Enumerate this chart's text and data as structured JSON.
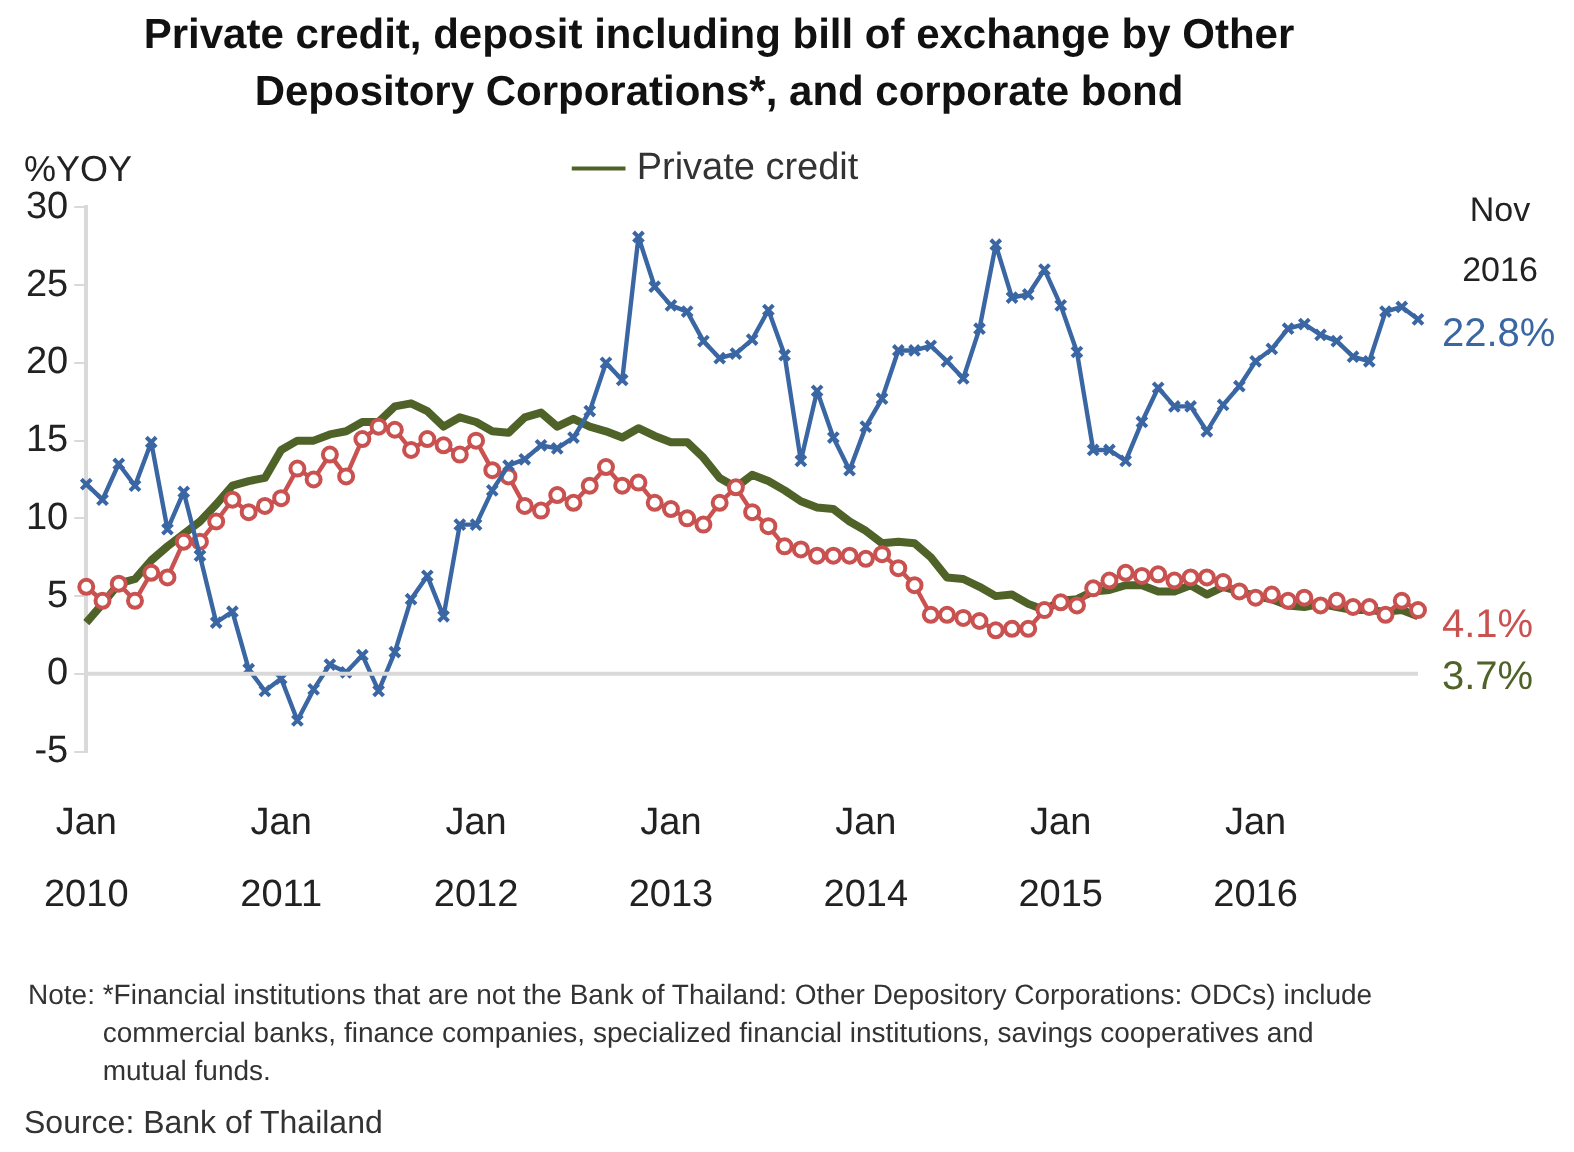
{
  "chart_data": {
    "type": "line",
    "title": "Private credit, deposit including bill of exchange by Other Depository Corporations*, and corporate bond",
    "ylabel": "%YOY",
    "categories": [
      "Jan 2010",
      null,
      null,
      null,
      null,
      null,
      null,
      null,
      null,
      null,
      null,
      null,
      "Jan 2011",
      null,
      null,
      null,
      null,
      null,
      null,
      null,
      null,
      null,
      null,
      null,
      "Jan 2012",
      null,
      null,
      null,
      null,
      null,
      null,
      null,
      null,
      null,
      null,
      null,
      "Jan 2013",
      null,
      null,
      null,
      null,
      null,
      null,
      null,
      null,
      null,
      null,
      null,
      "Jan 2014",
      null,
      null,
      null,
      null,
      null,
      null,
      null,
      null,
      null,
      null,
      null,
      "Jan 2015",
      null,
      null,
      null,
      null,
      null,
      null,
      null,
      null,
      null,
      null,
      null,
      "Jan 2016",
      null,
      null,
      null,
      null,
      null,
      null,
      null,
      null,
      null,
      null
    ],
    "series": [
      {
        "color": "#3a67a3",
        "marker": "cross",
        "values": [
          12.2,
          11.2,
          13.5,
          12.1,
          14.9,
          9.3,
          11.7,
          7.6,
          3.3,
          4.0,
          0.3,
          -1.1,
          -0.3,
          -3.0,
          -1.0,
          0.6,
          0.1,
          1.2,
          -1.1,
          1.4,
          4.8,
          6.3,
          3.7,
          9.6,
          9.6,
          11.8,
          13.4,
          13.8,
          14.7,
          14.5,
          15.2,
          16.9,
          20.0,
          18.9,
          28.1,
          24.9,
          23.7,
          23.3,
          21.4,
          20.3,
          20.6,
          21.5,
          23.4,
          20.5,
          13.7,
          18.2,
          15.2,
          13.1,
          15.9,
          17.7,
          20.8,
          20.8,
          21.1,
          20.1,
          19.0,
          22.2,
          27.6,
          24.2,
          24.4,
          26.0,
          23.7,
          20.7,
          14.4,
          14.4,
          13.7,
          16.2,
          18.4,
          17.2,
          17.2,
          15.6,
          17.3,
          18.5,
          20.1,
          20.9,
          22.2,
          22.5,
          21.8,
          21.4,
          20.4,
          20.1,
          23.3,
          23.6,
          22.8
        ]
      },
      {
        "color": "#c9514f",
        "marker": "circle",
        "values": [
          5.6,
          4.7,
          5.8,
          4.7,
          6.5,
          6.2,
          8.5,
          8.5,
          9.8,
          11.2,
          10.4,
          10.8,
          11.3,
          13.2,
          12.5,
          14.1,
          12.7,
          15.1,
          15.9,
          15.7,
          14.4,
          15.1,
          14.7,
          14.1,
          15.0,
          13.1,
          12.7,
          10.8,
          10.5,
          11.5,
          11.0,
          12.1,
          13.3,
          12.1,
          12.3,
          11.0,
          10.6,
          10.0,
          9.6,
          11.0,
          12.0,
          10.4,
          9.5,
          8.2,
          8.0,
          7.6,
          7.6,
          7.6,
          7.4,
          7.7,
          6.8,
          5.7,
          3.8,
          3.8,
          3.6,
          3.4,
          2.8,
          2.9,
          2.9,
          4.1,
          4.6,
          4.4,
          5.5,
          6.0,
          6.5,
          6.3,
          6.4,
          6.0,
          6.2,
          6.2,
          5.9,
          5.3,
          4.9,
          5.1,
          4.7,
          4.9,
          4.4,
          4.7,
          4.3,
          4.3,
          3.8,
          4.7,
          4.1
        ]
      },
      {
        "name": "Private credit",
        "color": "#4f6228",
        "marker": "none",
        "values": [
          3.3,
          4.5,
          5.8,
          6.1,
          7.3,
          8.2,
          9.0,
          9.8,
          10.9,
          12.1,
          12.4,
          12.6,
          14.4,
          15.0,
          15.0,
          15.4,
          15.6,
          16.2,
          16.2,
          17.2,
          17.4,
          16.9,
          15.9,
          16.5,
          16.2,
          15.6,
          15.5,
          16.5,
          16.8,
          15.9,
          16.4,
          15.9,
          15.6,
          15.2,
          15.8,
          15.3,
          14.9,
          14.9,
          13.9,
          12.6,
          12.0,
          12.8,
          12.4,
          11.8,
          11.1,
          10.7,
          10.6,
          9.8,
          9.2,
          8.4,
          8.5,
          8.4,
          7.5,
          6.2,
          6.1,
          5.6,
          5.0,
          5.1,
          4.5,
          4.1,
          4.7,
          4.8,
          5.3,
          5.4,
          5.7,
          5.7,
          5.3,
          5.3,
          5.7,
          5.1,
          5.6,
          5.3,
          5.0,
          4.8,
          4.4,
          4.3,
          4.5,
          4.3,
          4.1,
          4.1,
          4.0,
          4.1,
          3.7
        ]
      }
    ],
    "ylim": [
      -5,
      30
    ],
    "yticks": [
      -5,
      0,
      5,
      10,
      15,
      20,
      25,
      30
    ],
    "ref_lines": [
      {
        "axis": "y",
        "value": 0,
        "color": "#d9d9d9"
      }
    ],
    "legend": "top",
    "grid": false,
    "line_style": "solid",
    "annotations": [
      "Nov 2016",
      "22.8%",
      "4.1%",
      "3.7%",
      "Note: *Financial institutions that are not the Bank of Thailand: Other Depository Corporations: ODCs) include commercial banks, finance companies, specialized financial institutions, savings cooperatives and mutual funds.",
      "Source: Bank of Thailand"
    ]
  }
}
